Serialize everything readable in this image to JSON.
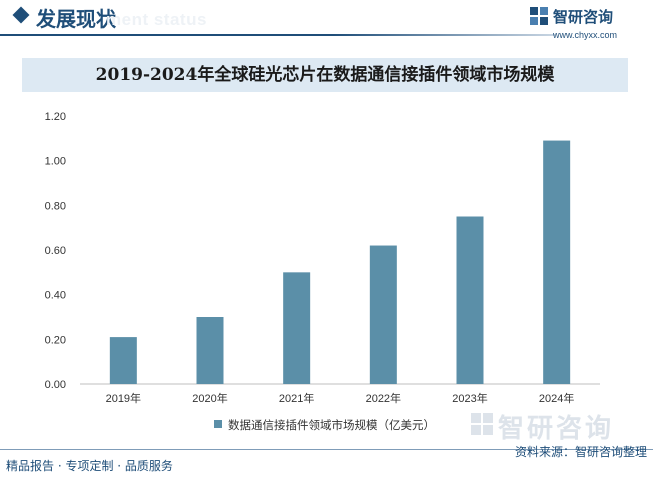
{
  "header": {
    "section_title": "发展现状",
    "section_subtitle": "ment status"
  },
  "brand": {
    "name": "智研咨询",
    "url": "www.chyxx.com"
  },
  "watermark_text": "智研咨询",
  "footer": {
    "slogan": "精品报告 · 专项定制 · 品质服务",
    "source": "资料来源：智研咨询整理"
  },
  "colors": {
    "bar": "#5b8fa8",
    "brand": "#1f4e79",
    "title_band": "#dde9f3"
  },
  "chart_data": {
    "type": "bar",
    "title": "2019-2024年全球硅光芯片在数据通信接插件领域市场规模",
    "categories": [
      "2019年",
      "2020年",
      "2021年",
      "2022年",
      "2023年",
      "2024年"
    ],
    "series": [
      {
        "name": "数据通信接插件领域市场规模（亿美元）",
        "values": [
          0.21,
          0.3,
          0.5,
          0.62,
          0.75,
          1.09
        ]
      }
    ],
    "ylim": [
      0,
      1.2
    ],
    "yticks": [
      "0.00",
      "0.20",
      "0.40",
      "0.60",
      "0.80",
      "1.00",
      "1.20"
    ],
    "grid": false,
    "legend_position": "bottom"
  }
}
